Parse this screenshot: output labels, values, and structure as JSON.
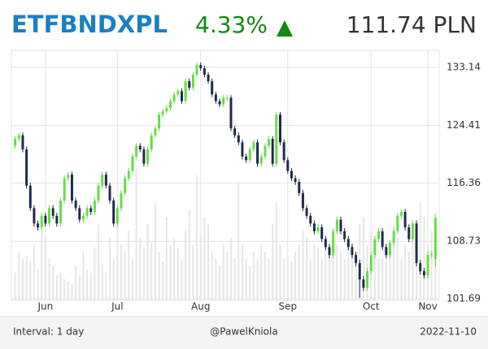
{
  "header": {
    "ticker": "ETFBNDXPL",
    "change": "4.33%",
    "price": "111.74 PLN"
  },
  "footer": {
    "interval": "Interval: 1 day",
    "author": "@PawelKniola",
    "date": "2022-11-10"
  },
  "chart_data": {
    "type": "candlestick",
    "log_scale": true,
    "grid": true,
    "up_color": "#66dd44",
    "down_color": "#1c2b4a",
    "volume_color": "#e6e6e6",
    "ylim": [
      101.5,
      135.8
    ],
    "yticks": [
      101.69,
      108.73,
      116.36,
      124.41,
      133.14
    ],
    "xlim": [
      -1,
      112
    ],
    "xticks": [
      {
        "value": 8,
        "label": "Jun"
      },
      {
        "value": 27,
        "label": "Jul"
      },
      {
        "value": 49,
        "label": "Aug"
      },
      {
        "value": 72,
        "label": "Sep"
      },
      {
        "value": 94,
        "label": "Oct"
      },
      {
        "value": 109,
        "label": "Nov"
      }
    ],
    "volume_lim": [
      0,
      180
    ],
    "open": [
      121.5,
      122.5,
      123,
      121,
      116,
      113,
      111,
      110.5,
      112,
      111,
      113,
      112,
      111,
      114,
      117,
      117.5,
      114,
      113,
      111.5,
      112,
      113,
      112.5,
      114,
      116,
      117.5,
      116,
      114,
      111,
      113,
      115,
      117,
      118,
      120,
      121.5,
      121,
      119,
      121,
      123,
      124,
      126,
      126.5,
      127,
      128,
      129,
      129.5,
      128,
      131,
      130,
      132,
      133.5,
      133,
      132,
      131,
      129,
      128,
      127.5,
      128.5,
      128.5,
      124,
      123,
      122,
      120,
      119.5,
      121,
      122,
      119,
      120,
      121.5,
      122.5,
      119,
      126,
      122,
      119.5,
      118,
      117,
      116.5,
      115,
      113,
      112,
      111,
      110,
      110.5,
      109,
      108,
      107,
      110,
      111.5,
      110,
      109,
      108,
      107,
      106,
      104,
      103,
      105,
      107,
      109,
      110,
      108,
      107,
      108.5,
      110,
      112,
      112.5,
      110.5,
      109,
      111,
      106,
      105,
      104.5,
      107,
      106.5
    ],
    "high": [
      122.9,
      123.4,
      123.4,
      121.4,
      116.4,
      113.4,
      111.4,
      112.4,
      112.4,
      113.4,
      113.4,
      112.4,
      114.4,
      117.4,
      117.9,
      117.9,
      114.4,
      113.4,
      112.4,
      113.4,
      113.4,
      114.4,
      116.4,
      117.9,
      117.9,
      116.4,
      114.4,
      113.4,
      115.4,
      117.4,
      118.4,
      120.4,
      121.9,
      121.9,
      121.4,
      121.4,
      123.4,
      124.4,
      126.4,
      126.9,
      127.4,
      128.4,
      129.4,
      129.9,
      129.9,
      131.4,
      131.4,
      132.4,
      133.9,
      133.9,
      133.4,
      132.4,
      131.4,
      129.4,
      128.4,
      128.9,
      128.9,
      128.9,
      124.4,
      123.4,
      122.4,
      120.4,
      121.4,
      122.4,
      122.4,
      120.4,
      121.9,
      122.9,
      122.9,
      126.4,
      126.4,
      122.4,
      119.9,
      118.4,
      117.4,
      116.9,
      115.4,
      113.4,
      112.4,
      111.4,
      110.9,
      110.9,
      109.4,
      108.4,
      110.4,
      111.9,
      111.9,
      110.4,
      109.4,
      108.4,
      107.4,
      106.4,
      104.4,
      105.4,
      107.4,
      109.4,
      110.4,
      110.4,
      108.4,
      108.9,
      110.4,
      112.4,
      112.9,
      112.9,
      110.9,
      111.4,
      111.4,
      106.4,
      105.4,
      107.4,
      107.5,
      112.2
    ],
    "low": [
      121.1,
      122.1,
      120.6,
      115.6,
      112.6,
      110.6,
      110.1,
      110.1,
      110.6,
      110.6,
      111.6,
      110.6,
      110.6,
      113.6,
      116.6,
      113.6,
      112.6,
      111.1,
      111.1,
      111.6,
      112.1,
      112.1,
      113.6,
      115.6,
      115.6,
      113.6,
      110.6,
      110.6,
      112.6,
      114.6,
      116.6,
      117.6,
      119.6,
      120.6,
      118.6,
      118.6,
      120.6,
      122.6,
      123.6,
      125.6,
      126.1,
      126.6,
      127.6,
      128.6,
      127.6,
      127.6,
      129.6,
      129.6,
      131.6,
      132.6,
      131.6,
      130.6,
      128.6,
      127.6,
      127.1,
      127.1,
      128.1,
      123.6,
      122.6,
      121.6,
      119.6,
      119.1,
      119.1,
      120.6,
      118.6,
      118.6,
      119.6,
      121.1,
      118.6,
      118.6,
      121.6,
      119.1,
      117.6,
      116.6,
      116.1,
      114.6,
      112.6,
      111.6,
      110.6,
      109.6,
      109.6,
      108.6,
      107.6,
      106.6,
      106.6,
      109.6,
      109.6,
      108.6,
      107.6,
      106.6,
      105.6,
      101.8,
      102.6,
      102.6,
      104.6,
      106.6,
      108.6,
      107.6,
      106.6,
      106.6,
      108.1,
      109.6,
      111.6,
      110.1,
      108.6,
      108.6,
      105.6,
      104.6,
      104.1,
      104.1,
      106.6,
      105.5
    ],
    "close": [
      122.5,
      123,
      121,
      116,
      113,
      111,
      110.5,
      112,
      111,
      113,
      112,
      111,
      114,
      117,
      117.5,
      114,
      113,
      111.5,
      112,
      113,
      112.5,
      114,
      116,
      117.5,
      116,
      114,
      111,
      113,
      115,
      117,
      118,
      120,
      121.5,
      121,
      119,
      121,
      123,
      124,
      126,
      126.5,
      127,
      128,
      129,
      129.5,
      128,
      131,
      130,
      132,
      133.5,
      133,
      132,
      131,
      129,
      128,
      127.5,
      128.5,
      128.5,
      124,
      123,
      122,
      120,
      119.5,
      121,
      122,
      119,
      120,
      121.5,
      122.5,
      119,
      126,
      122,
      119.5,
      118,
      117,
      116.5,
      115,
      113,
      112,
      111,
      110,
      110.5,
      109,
      108,
      107,
      110,
      111.5,
      110,
      109,
      108,
      107,
      106,
      104,
      103,
      105,
      107,
      109,
      110,
      108,
      107,
      108.5,
      110,
      112,
      112.5,
      110.5,
      109,
      111,
      106,
      105,
      104.5,
      107,
      107.1,
      111.74
    ],
    "volume": [
      20,
      35,
      30,
      32,
      28,
      40,
      22,
      60,
      45,
      30,
      25,
      18,
      20,
      15,
      14,
      12,
      25,
      18,
      35,
      22,
      20,
      38,
      55,
      25,
      20,
      45,
      30,
      60,
      40,
      35,
      50,
      30,
      95,
      45,
      38,
      55,
      42,
      70,
      35,
      28,
      60,
      40,
      45,
      38,
      30,
      50,
      65,
      40,
      90,
      45,
      60,
      55,
      35,
      30,
      25,
      40,
      35,
      45,
      30,
      85,
      40,
      30,
      25,
      35,
      30,
      40,
      35,
      30,
      55,
      70,
      40,
      30,
      32,
      28,
      35,
      40,
      50,
      45,
      30,
      40,
      38,
      30,
      45,
      35,
      50,
      40,
      35,
      30,
      45,
      40,
      35,
      55,
      60,
      40,
      50,
      35,
      30,
      30,
      35,
      38,
      55,
      45,
      30,
      40,
      35,
      48,
      45,
      70,
      60,
      40,
      50,
      35
    ]
  }
}
